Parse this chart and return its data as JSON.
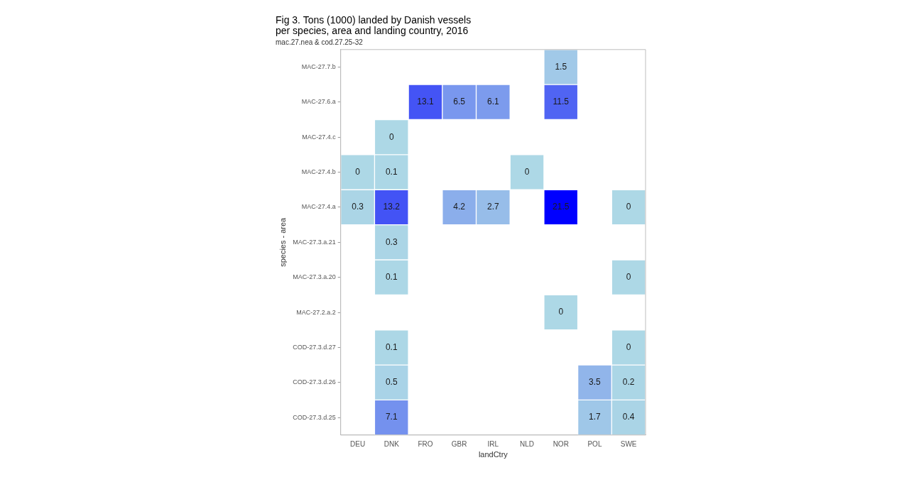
{
  "chart_data": {
    "type": "heatmap",
    "title": "Fig 3. Tons (1000) landed by Danish vessels\nper species, area and landing country, 2016",
    "subtitle": "mac.27.nea & cod.27.25-32",
    "xlabel": "landCtry",
    "ylabel": "species - area",
    "categories": [
      "DEU",
      "DNK",
      "FRO",
      "GBR",
      "IRL",
      "NLD",
      "NOR",
      "POL",
      "SWE"
    ],
    "y_categories": [
      "MAC-27.7.b",
      "MAC-27.6.a",
      "MAC-27.4.c",
      "MAC-27.4.b",
      "MAC-27.4.a",
      "MAC-27.3.a.21",
      "MAC-27.3.a.20",
      "MAC-27.2.a.2",
      "COD-27.3.d.27",
      "COD-27.3.d.26",
      "COD-27.3.d.25"
    ],
    "cells": [
      [
        null,
        null,
        null,
        null,
        null,
        null,
        1.5,
        null,
        null
      ],
      [
        null,
        null,
        13.1,
        6.5,
        6.1,
        null,
        11.5,
        null,
        null
      ],
      [
        null,
        0,
        null,
        null,
        null,
        null,
        null,
        null,
        null
      ],
      [
        0,
        0.1,
        null,
        null,
        null,
        0,
        null,
        null,
        null
      ],
      [
        0.3,
        13.2,
        null,
        4.2,
        2.7,
        null,
        21.5,
        null,
        0
      ],
      [
        null,
        0.3,
        null,
        null,
        null,
        null,
        null,
        null,
        null
      ],
      [
        null,
        0.1,
        null,
        null,
        null,
        null,
        null,
        null,
        0
      ],
      [
        null,
        null,
        null,
        null,
        null,
        null,
        0,
        null,
        null
      ],
      [
        null,
        0.1,
        null,
        null,
        null,
        null,
        null,
        null,
        0
      ],
      [
        null,
        0.5,
        null,
        null,
        null,
        null,
        null,
        3.5,
        0.2
      ],
      [
        null,
        7.1,
        null,
        null,
        null,
        null,
        null,
        1.7,
        0.4
      ]
    ],
    "data_labels": true,
    "grid": false,
    "legend": false
  }
}
